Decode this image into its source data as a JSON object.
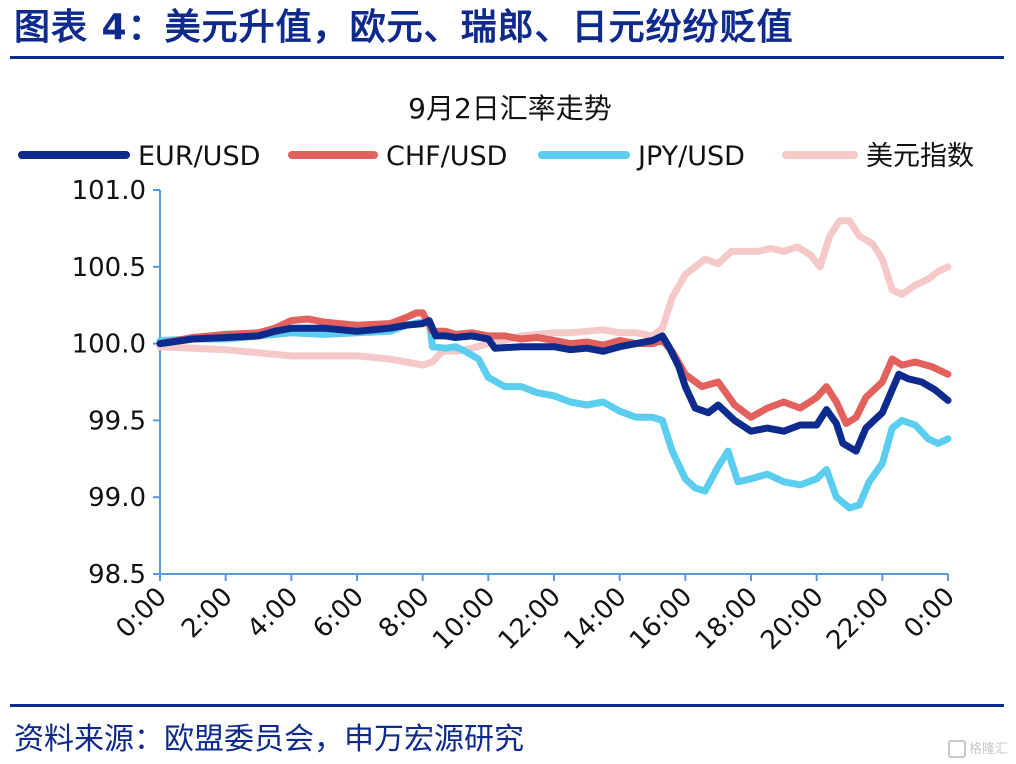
{
  "header": {
    "title": "图表 4：美元升值，欧元、瑞郎、日元纷纷贬值"
  },
  "footer": {
    "source": "资料来源：欧盟委员会，申万宏源研究"
  },
  "watermark": {
    "text": "格隆汇"
  },
  "chart_data": {
    "type": "line",
    "title": "9月2日汇率走势",
    "xlabel": "",
    "ylabel": "",
    "ylim": [
      98.5,
      101.0
    ],
    "y_ticks": [
      "101.0",
      "100.5",
      "100.0",
      "99.5",
      "99.0",
      "98.5"
    ],
    "x_ticks": [
      "0:00",
      "2:00",
      "4:00",
      "6:00",
      "8:00",
      "10:00",
      "12:00",
      "14:00",
      "16:00",
      "18:00",
      "20:00",
      "22:00",
      "0:00"
    ],
    "x_range_hours": [
      0,
      24
    ],
    "legend_position": "top",
    "grid": false,
    "series": [
      {
        "name": "EUR/USD",
        "color": "#0c2b8c",
        "points": [
          [
            0,
            100.0
          ],
          [
            1,
            100.03
          ],
          [
            2,
            100.04
          ],
          [
            3,
            100.05
          ],
          [
            3.5,
            100.08
          ],
          [
            4,
            100.1
          ],
          [
            5,
            100.1
          ],
          [
            6,
            100.08
          ],
          [
            7,
            100.1
          ],
          [
            7.5,
            100.12
          ],
          [
            8,
            100.13
          ],
          [
            8.2,
            100.15
          ],
          [
            8.4,
            100.05
          ],
          [
            8.7,
            100.05
          ],
          [
            9,
            100.04
          ],
          [
            9.5,
            100.05
          ],
          [
            10,
            100.03
          ],
          [
            10.2,
            99.97
          ],
          [
            11,
            99.98
          ],
          [
            12,
            99.98
          ],
          [
            12.5,
            99.96
          ],
          [
            13,
            99.97
          ],
          [
            13.5,
            99.95
          ],
          [
            14,
            99.98
          ],
          [
            14.5,
            100.0
          ],
          [
            15,
            100.02
          ],
          [
            15.3,
            100.05
          ],
          [
            15.5,
            99.98
          ],
          [
            15.8,
            99.85
          ],
          [
            16,
            99.72
          ],
          [
            16.3,
            99.58
          ],
          [
            16.7,
            99.55
          ],
          [
            17,
            99.6
          ],
          [
            17.5,
            99.5
          ],
          [
            18,
            99.43
          ],
          [
            18.5,
            99.45
          ],
          [
            19,
            99.43
          ],
          [
            19.5,
            99.47
          ],
          [
            20,
            99.47
          ],
          [
            20.3,
            99.57
          ],
          [
            20.6,
            99.48
          ],
          [
            20.8,
            99.35
          ],
          [
            21.2,
            99.3
          ],
          [
            21.5,
            99.45
          ],
          [
            22,
            99.55
          ],
          [
            22.5,
            99.8
          ],
          [
            22.8,
            99.77
          ],
          [
            23.2,
            99.75
          ],
          [
            23.6,
            99.7
          ],
          [
            24,
            99.63
          ]
        ]
      },
      {
        "name": "CHF/USD",
        "color": "#e2615d",
        "points": [
          [
            0,
            100.0
          ],
          [
            1,
            100.04
          ],
          [
            2,
            100.06
          ],
          [
            3,
            100.07
          ],
          [
            3.5,
            100.1
          ],
          [
            4,
            100.15
          ],
          [
            4.5,
            100.16
          ],
          [
            5,
            100.14
          ],
          [
            6,
            100.12
          ],
          [
            7,
            100.13
          ],
          [
            7.5,
            100.17
          ],
          [
            7.8,
            100.2
          ],
          [
            8,
            100.2
          ],
          [
            8.3,
            100.08
          ],
          [
            8.7,
            100.08
          ],
          [
            9,
            100.06
          ],
          [
            9.5,
            100.07
          ],
          [
            10,
            100.05
          ],
          [
            10.5,
            100.05
          ],
          [
            11,
            100.03
          ],
          [
            11.5,
            100.04
          ],
          [
            12,
            100.02
          ],
          [
            12.5,
            100.0
          ],
          [
            13,
            100.01
          ],
          [
            13.5,
            99.99
          ],
          [
            14,
            100.02
          ],
          [
            14.5,
            100.0
          ],
          [
            15,
            100.0
          ],
          [
            15.3,
            100.02
          ],
          [
            15.6,
            99.95
          ],
          [
            16,
            99.8
          ],
          [
            16.5,
            99.72
          ],
          [
            17,
            99.75
          ],
          [
            17.5,
            99.6
          ],
          [
            18,
            99.52
          ],
          [
            18.5,
            99.58
          ],
          [
            19,
            99.62
          ],
          [
            19.5,
            99.58
          ],
          [
            20,
            99.65
          ],
          [
            20.3,
            99.72
          ],
          [
            20.6,
            99.62
          ],
          [
            20.9,
            99.48
          ],
          [
            21.2,
            99.52
          ],
          [
            21.5,
            99.65
          ],
          [
            22,
            99.75
          ],
          [
            22.3,
            99.9
          ],
          [
            22.6,
            99.86
          ],
          [
            23,
            99.88
          ],
          [
            23.5,
            99.85
          ],
          [
            24,
            99.8
          ]
        ]
      },
      {
        "name": "JPY/USD",
        "color": "#5bcdee",
        "points": [
          [
            0,
            100.02
          ],
          [
            1,
            100.03
          ],
          [
            2,
            100.03
          ],
          [
            3,
            100.05
          ],
          [
            4,
            100.07
          ],
          [
            5,
            100.06
          ],
          [
            6,
            100.07
          ],
          [
            7,
            100.08
          ],
          [
            7.5,
            100.12
          ],
          [
            8,
            100.14
          ],
          [
            8.2,
            100.15
          ],
          [
            8.3,
            99.98
          ],
          [
            8.7,
            99.97
          ],
          [
            9,
            99.98
          ],
          [
            9.3,
            99.95
          ],
          [
            9.7,
            99.9
          ],
          [
            10,
            99.78
          ],
          [
            10.5,
            99.72
          ],
          [
            11,
            99.72
          ],
          [
            11.5,
            99.68
          ],
          [
            12,
            99.66
          ],
          [
            12.5,
            99.62
          ],
          [
            13,
            99.6
          ],
          [
            13.5,
            99.62
          ],
          [
            14,
            99.56
          ],
          [
            14.5,
            99.52
          ],
          [
            15,
            99.52
          ],
          [
            15.3,
            99.5
          ],
          [
            15.6,
            99.3
          ],
          [
            16,
            99.12
          ],
          [
            16.3,
            99.06
          ],
          [
            16.6,
            99.04
          ],
          [
            17,
            99.2
          ],
          [
            17.3,
            99.3
          ],
          [
            17.6,
            99.1
          ],
          [
            18,
            99.12
          ],
          [
            18.5,
            99.15
          ],
          [
            19,
            99.1
          ],
          [
            19.5,
            99.08
          ],
          [
            20,
            99.12
          ],
          [
            20.3,
            99.18
          ],
          [
            20.6,
            99.0
          ],
          [
            21,
            98.93
          ],
          [
            21.3,
            98.95
          ],
          [
            21.6,
            99.1
          ],
          [
            22,
            99.22
          ],
          [
            22.3,
            99.45
          ],
          [
            22.6,
            99.5
          ],
          [
            23,
            99.47
          ],
          [
            23.4,
            99.38
          ],
          [
            23.7,
            99.35
          ],
          [
            24,
            99.38
          ]
        ]
      },
      {
        "name": "美元指数",
        "color": "#f6c9c9",
        "points": [
          [
            0,
            99.98
          ],
          [
            1,
            99.97
          ],
          [
            2,
            99.96
          ],
          [
            3,
            99.94
          ],
          [
            4,
            99.92
          ],
          [
            5,
            99.92
          ],
          [
            6,
            99.92
          ],
          [
            7,
            99.9
          ],
          [
            7.5,
            99.88
          ],
          [
            8,
            99.86
          ],
          [
            8.3,
            99.88
          ],
          [
            8.6,
            99.95
          ],
          [
            9,
            99.95
          ],
          [
            9.5,
            99.97
          ],
          [
            10,
            100.0
          ],
          [
            10.5,
            100.02
          ],
          [
            11,
            100.05
          ],
          [
            11.5,
            100.06
          ],
          [
            12,
            100.07
          ],
          [
            12.5,
            100.07
          ],
          [
            13,
            100.08
          ],
          [
            13.5,
            100.09
          ],
          [
            14,
            100.07
          ],
          [
            14.5,
            100.07
          ],
          [
            15,
            100.05
          ],
          [
            15.3,
            100.1
          ],
          [
            15.6,
            100.3
          ],
          [
            16,
            100.45
          ],
          [
            16.3,
            100.5
          ],
          [
            16.6,
            100.55
          ],
          [
            17,
            100.52
          ],
          [
            17.4,
            100.6
          ],
          [
            17.8,
            100.6
          ],
          [
            18.2,
            100.6
          ],
          [
            18.6,
            100.62
          ],
          [
            19,
            100.6
          ],
          [
            19.4,
            100.63
          ],
          [
            19.8,
            100.58
          ],
          [
            20.1,
            100.5
          ],
          [
            20.4,
            100.7
          ],
          [
            20.7,
            100.8
          ],
          [
            21,
            100.8
          ],
          [
            21.3,
            100.7
          ],
          [
            21.7,
            100.65
          ],
          [
            22,
            100.55
          ],
          [
            22.3,
            100.35
          ],
          [
            22.6,
            100.32
          ],
          [
            23,
            100.38
          ],
          [
            23.4,
            100.42
          ],
          [
            23.7,
            100.47
          ],
          [
            24,
            100.5
          ]
        ]
      }
    ]
  }
}
